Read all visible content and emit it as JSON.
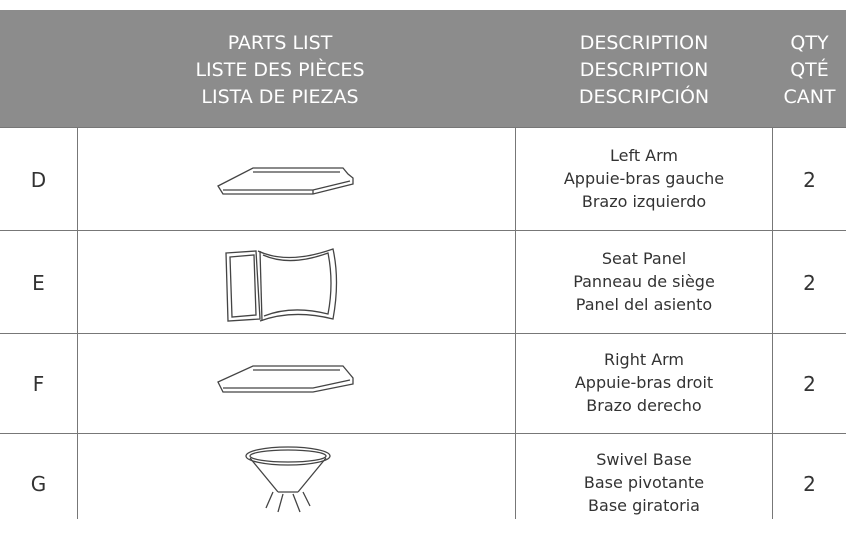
{
  "header": {
    "parts": [
      "PARTS LIST",
      "LISTE DES PIÈCES",
      "LISTA DE PIEZAS"
    ],
    "description": [
      "DESCRIPTION",
      "DESCRIPTION",
      "DESCRIPCIÓN"
    ],
    "qty": [
      "QTY",
      "QTÉ",
      "CANT"
    ]
  },
  "rows": [
    {
      "id": "D",
      "description": [
        "Left Arm",
        "Appuie-bras gauche",
        "Brazo izquierdo"
      ],
      "qty": 2
    },
    {
      "id": "E",
      "description": [
        "Seat Panel",
        "Panneau de siège",
        "Panel del asiento"
      ],
      "qty": 2
    },
    {
      "id": "F",
      "description": [
        "Right Arm",
        "Appuie-bras droit",
        "Brazo derecho"
      ],
      "qty": 2
    },
    {
      "id": "G",
      "description": [
        "Swivel Base",
        "Base pivotante",
        "Base giratoria"
      ],
      "qty": 2
    }
  ]
}
